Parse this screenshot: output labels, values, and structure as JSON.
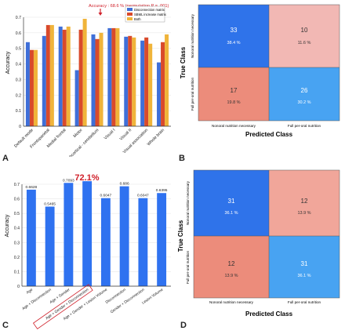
{
  "panel_labels": {
    "A": "A",
    "B": "B",
    "C": "C",
    "D": "D"
  },
  "chart_data": [
    {
      "panel": "A",
      "type": "bar",
      "ylabel": "Accuracy",
      "ylim": [
        0,
        0.7
      ],
      "yticks": [
        "0",
        "0.1",
        "0.2",
        "0.3",
        "0.4",
        "0.5",
        "0.6",
        "0.7"
      ],
      "categories": [
        "Default mode",
        "Frontoparietal",
        "Medial frontal",
        "Motor",
        "Subcortical - cerebellum",
        "Visual I",
        "Visual II",
        "Visual association",
        "Whole brain"
      ],
      "series": [
        {
          "name": "Disconnection matrix",
          "color": "#3f6fd8",
          "values": [
            0.54,
            0.58,
            0.64,
            0.36,
            0.59,
            0.63,
            0.575,
            0.55,
            0.41
          ]
        },
        {
          "name": "SBML increase matrix",
          "color": "#d94a2b",
          "values": [
            0.49,
            0.65,
            0.62,
            0.62,
            0.56,
            0.63,
            0.58,
            0.57,
            0.54
          ]
        },
        {
          "name": "Both",
          "color": "#f0b43a",
          "values": [
            0.49,
            0.65,
            0.64,
            0.69,
            0.6,
            0.63,
            0.57,
            0.53,
            0.59
          ]
        }
      ],
      "annotation": "Accuracy : 68.6 % (permutation P = .001)",
      "legend_position": "top-right"
    },
    {
      "panel": "C",
      "type": "bar",
      "ylabel": "Accuracy",
      "ylim": [
        0,
        0.7
      ],
      "yticks": [
        "0",
        "0.1",
        "0.2",
        "0.3",
        "0.4",
        "0.5",
        "0.6",
        "0.7"
      ],
      "categories": [
        "Age",
        "Age + Disconnection",
        "Age + Gender",
        "Age + Gender + Disconnection",
        "Age + Gender + Lesion Volume",
        "Disconnection",
        "Gender + Disconnection",
        "Lesion Volume"
      ],
      "values": [
        0.6628,
        0.5465,
        0.7093,
        0.721,
        0.6047,
        0.686,
        0.6047,
        0.6395
      ],
      "value_labels": [
        "0.6628",
        "0.5465",
        "0.7093",
        "",
        "0.6047",
        "0.686",
        "0.6047",
        "0.6395"
      ],
      "highlight_label": "72.1%",
      "highlight_index": 3,
      "color": "#2f72f0"
    }
  ],
  "confusion_matrices": [
    {
      "panel": "B",
      "ylabel": "True Class",
      "xlabel": "Predicted Class",
      "classes": [
        "Nonoral nutrition necessary",
        "Full per-oral nutrition"
      ],
      "cells": [
        {
          "count": "33",
          "percent": "38.4 %",
          "color": "#2f73ea"
        },
        {
          "count": "10",
          "percent": "11.6 %",
          "color": "#f2b8b4"
        },
        {
          "count": "17",
          "percent": "19.8 %",
          "color": "#ec8c7b"
        },
        {
          "count": "26",
          "percent": "30.2 %",
          "color": "#48a3f2"
        }
      ]
    },
    {
      "panel": "D",
      "ylabel": "True Class",
      "xlabel": "Predicted Class",
      "classes": [
        "Nonoral nutrition necessary",
        "Full per-oral nutrition"
      ],
      "cells": [
        {
          "count": "31",
          "percent": "36.1 %",
          "color": "#2f73ea"
        },
        {
          "count": "12",
          "percent": "13.9 %",
          "color": "#f1a69a"
        },
        {
          "count": "12",
          "percent": "13.9 %",
          "color": "#ec8c7b"
        },
        {
          "count": "31",
          "percent": "36.1 %",
          "color": "#48a3f2"
        }
      ]
    }
  ]
}
